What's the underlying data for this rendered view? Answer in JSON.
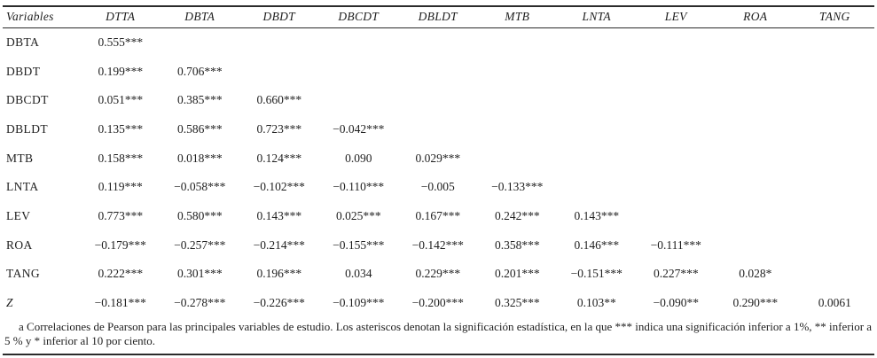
{
  "page": {
    "background": "#ffffff",
    "text_color": "#1f1f1f",
    "rule_color": "#2b2b2b"
  },
  "table": {
    "columns": [
      "Variables",
      "DTTA",
      "DBTA",
      "DBDT",
      "DBCDT",
      "DBLDT",
      "MTB",
      "LNTA",
      "LEV",
      "ROA",
      "TANG"
    ],
    "rows": [
      {
        "label": "DBTA",
        "italic": false,
        "values": [
          "0.555***",
          "",
          "",
          "",
          "",
          "",
          "",
          "",
          "",
          ""
        ]
      },
      {
        "label": "DBDT",
        "italic": false,
        "values": [
          "0.199***",
          "0.706***",
          "",
          "",
          "",
          "",
          "",
          "",
          "",
          ""
        ]
      },
      {
        "label": "DBCDT",
        "italic": false,
        "values": [
          "0.051***",
          "0.385***",
          "0.660***",
          "",
          "",
          "",
          "",
          "",
          "",
          ""
        ]
      },
      {
        "label": "DBLDT",
        "italic": false,
        "values": [
          "0.135***",
          "0.586***",
          "0.723***",
          "−0.042***",
          "",
          "",
          "",
          "",
          "",
          ""
        ]
      },
      {
        "label": "MTB",
        "italic": false,
        "values": [
          "0.158***",
          "0.018***",
          "0.124***",
          "0.090",
          "0.029***",
          "",
          "",
          "",
          "",
          ""
        ]
      },
      {
        "label": "LNTA",
        "italic": false,
        "values": [
          "0.119***",
          "−0.058***",
          "−0.102***",
          "−0.110***",
          "−0.005",
          "−0.133***",
          "",
          "",
          "",
          ""
        ]
      },
      {
        "label": "LEV",
        "italic": false,
        "values": [
          "0.773***",
          "0.580***",
          "0.143***",
          "0.025***",
          "0.167***",
          "0.242***",
          "0.143***",
          "",
          "",
          ""
        ]
      },
      {
        "label": "ROA",
        "italic": false,
        "values": [
          "−0.179***",
          "−0.257***",
          "−0.214***",
          "−0.155***",
          "−0.142***",
          "0.358***",
          "0.146***",
          "−0.111***",
          "",
          ""
        ]
      },
      {
        "label": "TANG",
        "italic": false,
        "values": [
          "0.222***",
          "0.301***",
          "0.196***",
          "0.034",
          "0.229***",
          "0.201***",
          "−0.151***",
          "0.227***",
          "0.028*",
          ""
        ]
      },
      {
        "label": "Z",
        "italic": true,
        "values": [
          "−0.181***",
          "−0.278***",
          "−0.226***",
          "−0.109***",
          "−0.200***",
          "0.325***",
          "0.103**",
          "−0.090**",
          "0.290***",
          "0.0061"
        ]
      }
    ]
  },
  "footnote": {
    "marker": "a",
    "text": "Correlaciones de Pearson para las principales variables de estudio. Los asteriscos denotan la significación estadística, en la que *** indica una significación inferior a 1%, ** inferior a 5 % y * inferior al 10 por ciento."
  }
}
